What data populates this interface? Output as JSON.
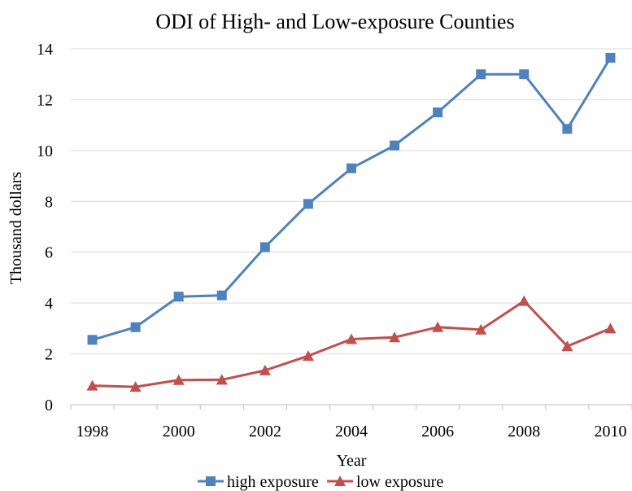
{
  "chart_data": {
    "type": "line",
    "title": "ODI of High- and Low-exposure Counties",
    "xlabel": "Year",
    "ylabel": "Thousand dollars",
    "x": [
      1998,
      1999,
      2000,
      2001,
      2002,
      2003,
      2004,
      2005,
      2006,
      2007,
      2008,
      2009,
      2010
    ],
    "x_tick_labels": [
      "1998",
      "2000",
      "2002",
      "2004",
      "2006",
      "2008",
      "2010"
    ],
    "y_tick_labels": [
      "0",
      "2",
      "4",
      "6",
      "8",
      "10",
      "12",
      "14"
    ],
    "ylim": [
      0,
      14
    ],
    "grid": true,
    "legend_position": "bottom",
    "series": [
      {
        "name": "high exposure",
        "color": "#4f81bd",
        "marker": "square",
        "values": [
          2.55,
          3.05,
          4.25,
          4.3,
          6.2,
          7.9,
          9.3,
          10.2,
          11.5,
          13.0,
          13.0,
          10.85,
          13.65
        ]
      },
      {
        "name": "low exposure",
        "color": "#c0504d",
        "marker": "triangle",
        "values": [
          0.75,
          0.7,
          0.97,
          0.98,
          1.35,
          1.92,
          2.58,
          2.65,
          3.05,
          2.95,
          4.08,
          2.3,
          3.0
        ]
      }
    ]
  }
}
